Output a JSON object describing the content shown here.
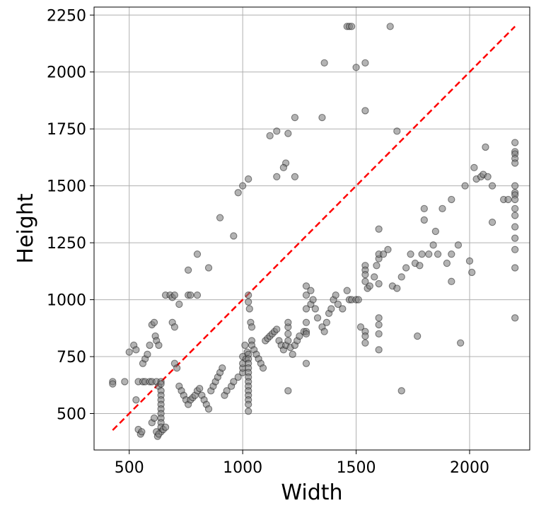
{
  "chart_data": {
    "type": "scatter",
    "title": "",
    "xlabel": "Width",
    "ylabel": "Height",
    "xlim": [
      345,
      2265
    ],
    "ylim": [
      340,
      2285
    ],
    "xticks": [
      500,
      1000,
      1500,
      2000
    ],
    "yticks": [
      500,
      750,
      1000,
      1250,
      1500,
      1750,
      2000,
      2250
    ],
    "grid": true,
    "marker_color": "#808080",
    "marker_edge_color": "#000000",
    "reference_line": {
      "from": [
        427,
        427
      ],
      "to": [
        2200,
        2200
      ],
      "color": "#ff0000",
      "style": "dashed"
    },
    "points": [
      [
        427,
        640
      ],
      [
        427,
        630
      ],
      [
        480,
        640
      ],
      [
        500,
        770
      ],
      [
        520,
        800
      ],
      [
        530,
        780
      ],
      [
        540,
        640
      ],
      [
        560,
        640
      ],
      [
        570,
        640
      ],
      [
        590,
        640
      ],
      [
        600,
        640
      ],
      [
        620,
        640
      ],
      [
        630,
        620
      ],
      [
        640,
        640
      ],
      [
        640,
        630
      ],
      [
        640,
        600
      ],
      [
        640,
        580
      ],
      [
        640,
        560
      ],
      [
        640,
        540
      ],
      [
        640,
        520
      ],
      [
        640,
        500
      ],
      [
        640,
        480
      ],
      [
        640,
        460
      ],
      [
        640,
        440
      ],
      [
        640,
        420
      ],
      [
        530,
        560
      ],
      [
        540,
        430
      ],
      [
        550,
        410
      ],
      [
        555,
        420
      ],
      [
        560,
        720
      ],
      [
        570,
        740
      ],
      [
        580,
        760
      ],
      [
        590,
        800
      ],
      [
        600,
        890
      ],
      [
        610,
        900
      ],
      [
        615,
        840
      ],
      [
        620,
        820
      ],
      [
        630,
        800
      ],
      [
        600,
        460
      ],
      [
        610,
        480
      ],
      [
        620,
        420
      ],
      [
        625,
        400
      ],
      [
        630,
        410
      ],
      [
        650,
        430
      ],
      [
        660,
        440
      ],
      [
        660,
        1020
      ],
      [
        680,
        1020
      ],
      [
        690,
        1010
      ],
      [
        700,
        1020
      ],
      [
        690,
        900
      ],
      [
        700,
        880
      ],
      [
        720,
        980
      ],
      [
        760,
        1020
      ],
      [
        770,
        1020
      ],
      [
        800,
        1020
      ],
      [
        760,
        1130
      ],
      [
        800,
        1200
      ],
      [
        850,
        1140
      ],
      [
        700,
        720
      ],
      [
        710,
        700
      ],
      [
        720,
        620
      ],
      [
        730,
        600
      ],
      [
        740,
        580
      ],
      [
        750,
        560
      ],
      [
        760,
        540
      ],
      [
        770,
        560
      ],
      [
        780,
        570
      ],
      [
        790,
        580
      ],
      [
        800,
        600
      ],
      [
        810,
        610
      ],
      [
        820,
        580
      ],
      [
        830,
        560
      ],
      [
        840,
        540
      ],
      [
        850,
        520
      ],
      [
        860,
        600
      ],
      [
        870,
        620
      ],
      [
        880,
        640
      ],
      [
        890,
        660
      ],
      [
        900,
        680
      ],
      [
        910,
        700
      ],
      [
        920,
        580
      ],
      [
        930,
        600
      ],
      [
        950,
        620
      ],
      [
        960,
        640
      ],
      [
        980,
        660
      ],
      [
        1000,
        680
      ],
      [
        1000,
        700
      ],
      [
        1000,
        720
      ],
      [
        1000,
        750
      ],
      [
        1010,
        800
      ],
      [
        1015,
        740
      ],
      [
        1020,
        770
      ],
      [
        1025,
        760
      ],
      [
        1025,
        740
      ],
      [
        1025,
        720
      ],
      [
        1025,
        700
      ],
      [
        1025,
        680
      ],
      [
        1025,
        660
      ],
      [
        1025,
        640
      ],
      [
        1025,
        620
      ],
      [
        1025,
        600
      ],
      [
        1025,
        580
      ],
      [
        1025,
        560
      ],
      [
        1025,
        540
      ],
      [
        1025,
        510
      ],
      [
        1025,
        990
      ],
      [
        1025,
        1020
      ],
      [
        1030,
        960
      ],
      [
        1035,
        900
      ],
      [
        1040,
        880
      ],
      [
        1040,
        820
      ],
      [
        1040,
        800
      ],
      [
        1050,
        780
      ],
      [
        1060,
        760
      ],
      [
        1070,
        740
      ],
      [
        1080,
        720
      ],
      [
        1090,
        700
      ],
      [
        1100,
        820
      ],
      [
        1110,
        830
      ],
      [
        1120,
        840
      ],
      [
        1130,
        850
      ],
      [
        1140,
        860
      ],
      [
        1150,
        870
      ],
      [
        1160,
        820
      ],
      [
        1170,
        800
      ],
      [
        1180,
        780
      ],
      [
        1190,
        800
      ],
      [
        1200,
        820
      ],
      [
        1200,
        850
      ],
      [
        1200,
        880
      ],
      [
        1200,
        900
      ],
      [
        1210,
        790
      ],
      [
        1220,
        760
      ],
      [
        1230,
        800
      ],
      [
        1240,
        820
      ],
      [
        1250,
        840
      ],
      [
        1270,
        860
      ],
      [
        1280,
        900
      ],
      [
        1280,
        960
      ],
      [
        1280,
        1020
      ],
      [
        1280,
        860
      ],
      [
        1280,
        850
      ],
      [
        1280,
        720
      ],
      [
        1300,
        980
      ],
      [
        1310,
        1000
      ],
      [
        1320,
        960
      ],
      [
        1330,
        920
      ],
      [
        1350,
        880
      ],
      [
        1360,
        860
      ],
      [
        1370,
        900
      ],
      [
        1380,
        940
      ],
      [
        1390,
        960
      ],
      [
        1400,
        1000
      ],
      [
        1410,
        1020
      ],
      [
        1420,
        980
      ],
      [
        1440,
        960
      ],
      [
        1460,
        1040
      ],
      [
        1470,
        1000
      ],
      [
        1480,
        1000
      ],
      [
        1500,
        1000
      ],
      [
        1510,
        1000
      ],
      [
        1520,
        880
      ],
      [
        1540,
        860
      ],
      [
        1540,
        840
      ],
      [
        1540,
        810
      ],
      [
        1540,
        1150
      ],
      [
        1540,
        1130
      ],
      [
        1540,
        1110
      ],
      [
        1540,
        1080
      ],
      [
        1550,
        1050
      ],
      [
        1560,
        1060
      ],
      [
        1580,
        1100
      ],
      [
        1590,
        1150
      ],
      [
        1600,
        1180
      ],
      [
        1600,
        1200
      ],
      [
        1600,
        1070
      ],
      [
        1600,
        920
      ],
      [
        1600,
        890
      ],
      [
        1600,
        850
      ],
      [
        1600,
        780
      ],
      [
        1600,
        1310
      ],
      [
        1620,
        1200
      ],
      [
        1640,
        1220
      ],
      [
        1660,
        1060
      ],
      [
        1680,
        1050
      ],
      [
        1700,
        1100
      ],
      [
        1720,
        1140
      ],
      [
        1740,
        1200
      ],
      [
        1760,
        1160
      ],
      [
        1780,
        1150
      ],
      [
        1790,
        1200
      ],
      [
        1800,
        1350
      ],
      [
        1800,
        1400
      ],
      [
        1820,
        1200
      ],
      [
        1840,
        1240
      ],
      [
        1850,
        1300
      ],
      [
        1860,
        1200
      ],
      [
        1880,
        1400
      ],
      [
        1900,
        1160
      ],
      [
        1920,
        1200
      ],
      [
        1920,
        1080
      ],
      [
        1920,
        1440
      ],
      [
        1950,
        1240
      ],
      [
        1960,
        810
      ],
      [
        1980,
        1500
      ],
      [
        2000,
        1170
      ],
      [
        2010,
        1120
      ],
      [
        2020,
        1580
      ],
      [
        2030,
        1530
      ],
      [
        2050,
        1540
      ],
      [
        2060,
        1550
      ],
      [
        2070,
        1670
      ],
      [
        2080,
        1540
      ],
      [
        2100,
        1500
      ],
      [
        2100,
        1340
      ],
      [
        2150,
        1440
      ],
      [
        2170,
        1440
      ],
      [
        2200,
        1690
      ],
      [
        2200,
        1650
      ],
      [
        2200,
        1640
      ],
      [
        2200,
        1620
      ],
      [
        2200,
        1600
      ],
      [
        2200,
        1500
      ],
      [
        2200,
        1470
      ],
      [
        2200,
        1460
      ],
      [
        2200,
        1440
      ],
      [
        2200,
        1400
      ],
      [
        2200,
        1370
      ],
      [
        2200,
        1320
      ],
      [
        2200,
        1270
      ],
      [
        2200,
        1220
      ],
      [
        2200,
        1140
      ],
      [
        2200,
        920
      ],
      [
        1770,
        840
      ],
      [
        1700,
        600
      ],
      [
        1200,
        600
      ],
      [
        900,
        1360
      ],
      [
        960,
        1280
      ],
      [
        980,
        1470
      ],
      [
        1000,
        1500
      ],
      [
        1025,
        1530
      ],
      [
        1120,
        1720
      ],
      [
        1150,
        1740
      ],
      [
        1150,
        1540
      ],
      [
        1190,
        1600
      ],
      [
        1200,
        1730
      ],
      [
        1230,
        1800
      ],
      [
        1230,
        1540
      ],
      [
        1180,
        1580
      ],
      [
        1350,
        1800
      ],
      [
        1360,
        2040
      ],
      [
        1460,
        2200
      ],
      [
        1470,
        2200
      ],
      [
        1480,
        2200
      ],
      [
        1500,
        2020
      ],
      [
        1540,
        2040
      ],
      [
        1650,
        2200
      ],
      [
        1680,
        1740
      ],
      [
        1540,
        1830
      ],
      [
        1280,
        1060
      ],
      [
        1300,
        1040
      ]
    ]
  }
}
